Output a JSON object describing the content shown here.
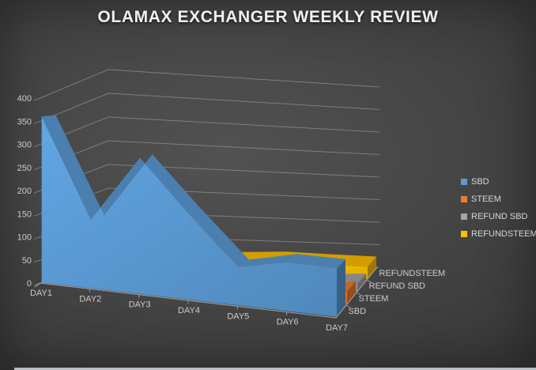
{
  "chart_data": {
    "type": "area",
    "style": "3d-area",
    "title": "OLAMAX EXCHANGER WEEKLY REVIEW",
    "categories": [
      "DAY1",
      "DAY2",
      "DAY3",
      "DAY4",
      "DAY5",
      "DAY6",
      "DAY7"
    ],
    "series": [
      {
        "name": "SBD",
        "color": "#5B9BD5",
        "values": [
          360,
          150,
          300,
          190,
          85,
          110,
          110
        ]
      },
      {
        "name": "STEEM",
        "color": "#ED7D31",
        "values": [
          15,
          8,
          10,
          8,
          5,
          12,
          30
        ]
      },
      {
        "name": "REFUND SBD",
        "color": "#A5A5A5",
        "values": [
          5,
          5,
          5,
          5,
          8,
          10,
          18
        ]
      },
      {
        "name": "REFUNDSTEEM",
        "color": "#FFC000",
        "values": [
          12,
          12,
          12,
          30,
          35,
          32,
          30
        ]
      }
    ],
    "y_ticks": [
      0,
      50,
      100,
      150,
      200,
      250,
      300,
      350,
      400
    ],
    "ylim": [
      0,
      400
    ],
    "legend_position": "right",
    "grid": true,
    "depth_axis_labels": [
      "SBD",
      "STEEM",
      "REFUND SBD",
      "REFUNDSTEEM"
    ]
  },
  "appearance": {
    "background_center": "#525252",
    "background_edge": "#303030",
    "gridline_color": "#a8a8a8",
    "axis_line_color": "#a8a8a8",
    "axis_label_color": "#cbcbcb",
    "title_color": "#f0f0f0",
    "legend_text_color": "#d6d6d6",
    "bottom_strip_color": "#c9ced3"
  }
}
